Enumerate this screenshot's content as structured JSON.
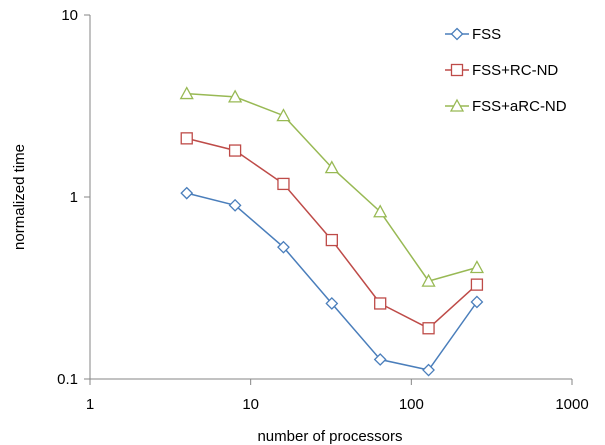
{
  "chart_data": {
    "type": "line",
    "title": "",
    "xlabel": "number of processors",
    "ylabel": "normalized time",
    "x_scale": "log",
    "y_scale": "log",
    "xlim": [
      1,
      1000
    ],
    "ylim": [
      0.1,
      10
    ],
    "x_ticks": [
      1,
      10,
      100,
      1000
    ],
    "x_tick_labels": [
      "1",
      "10",
      "100",
      "1000"
    ],
    "y_ticks": [
      0.1,
      1,
      10
    ],
    "y_tick_labels": [
      "0.1",
      "1",
      "10"
    ],
    "grid": false,
    "legend_position": "top-right",
    "x": [
      4,
      8,
      16,
      32,
      64,
      128,
      256
    ],
    "series": [
      {
        "name": "FSS",
        "color": "#4a7ebb",
        "marker": "diamond",
        "values": [
          1.05,
          0.9,
          0.53,
          0.26,
          0.128,
          0.112,
          0.265
        ]
      },
      {
        "name": "FSS+RC-ND",
        "color": "#be4b48",
        "marker": "square",
        "values": [
          2.1,
          1.8,
          1.18,
          0.58,
          0.26,
          0.19,
          0.33
        ]
      },
      {
        "name": "FSS+aRC-ND",
        "color": "#98b954",
        "marker": "triangle",
        "values": [
          3.7,
          3.55,
          2.8,
          1.45,
          0.83,
          0.345,
          0.41
        ]
      }
    ]
  }
}
